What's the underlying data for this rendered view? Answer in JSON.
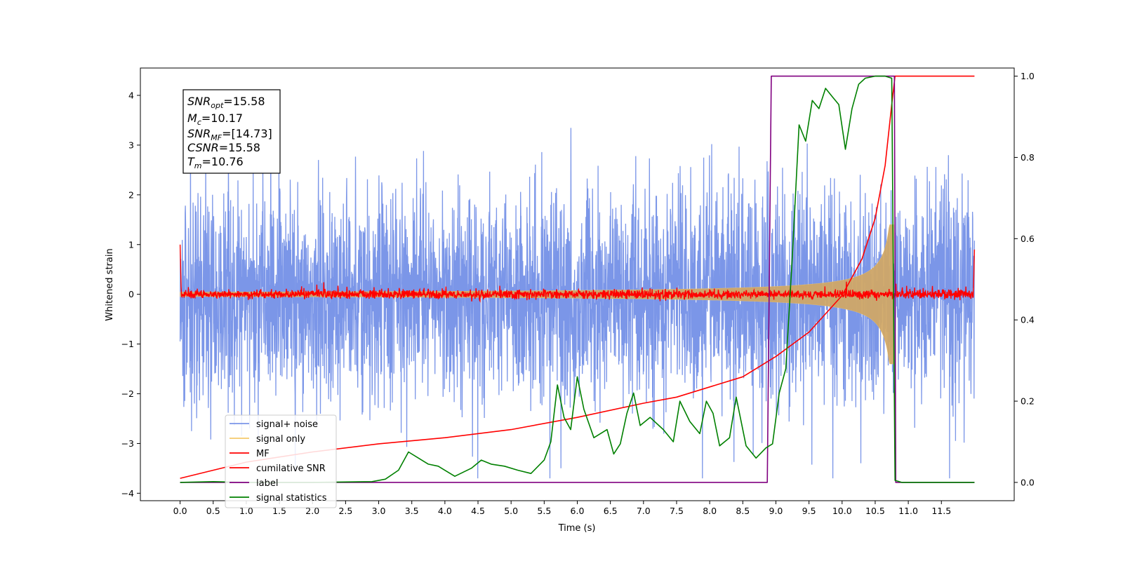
{
  "chart_data": {
    "type": "line",
    "title": "",
    "xlabel": "Time (s)",
    "ylabel": "Whitened strain",
    "xlim": [
      -0.6,
      12.6
    ],
    "ylim": [
      -4.15,
      4.55
    ],
    "y2lim": [
      -0.045,
      1.02
    ],
    "x_ticks": [
      "0.0",
      "0.5",
      "1.0",
      "1.5",
      "2.0",
      "2.5",
      "3.0",
      "3.5",
      "4.0",
      "4.5",
      "5.0",
      "5.5",
      "6.0",
      "6.5",
      "7.0",
      "7.5",
      "8.0",
      "8.5",
      "9.0",
      "9.5",
      "10.0",
      "10.5",
      "11.0",
      "11.5"
    ],
    "y_ticks": [
      "−4",
      "−3",
      "−2",
      "−1",
      "0",
      "1",
      "2",
      "3",
      "4"
    ],
    "y2_ticks": [
      "0.0",
      "0.2",
      "0.4",
      "0.6",
      "0.8",
      "1.0"
    ],
    "grid": false,
    "legend_position": "lower-left",
    "annotation": {
      "snr_opt": {
        "label": "SNR",
        "sub": "opt",
        "value": "=15.58"
      },
      "mc": {
        "label": "M",
        "sub": "c",
        "value": "=10.17"
      },
      "snr_mf": {
        "label": "SNR",
        "sub": "MF",
        "value": "=[14.73]"
      },
      "csnr": {
        "label": "CSNR",
        "sub": "",
        "value": "=15.58"
      },
      "tm": {
        "label": "T",
        "sub": "m",
        "value": "=10.76"
      }
    },
    "series": [
      {
        "name": "signal+ noise",
        "color": "#7b96e8",
        "axis": "left",
        "kind": "noise",
        "t_start": 0.0,
        "t_end": 12.0,
        "approx_envelope": [
          -3.7,
          4.2
        ]
      },
      {
        "name": "signal only",
        "color": "#f5c96b",
        "axis": "left",
        "kind": "chirp",
        "t_start": 0.0,
        "t_end": 10.8,
        "approx_peak_amplitude": 1.4
      },
      {
        "name": "MF",
        "color": "#ff0000",
        "axis": "left",
        "kind": "noise",
        "t_start": 0.0,
        "t_end": 12.0,
        "approx_envelope": [
          -0.12,
          0.22
        ]
      },
      {
        "name": "cumilative SNR",
        "color": "#ff0000",
        "axis": "right",
        "points": [
          [
            0.0,
            0.01
          ],
          [
            1.0,
            0.05
          ],
          [
            2.0,
            0.075
          ],
          [
            3.0,
            0.095
          ],
          [
            4.0,
            0.11
          ],
          [
            5.0,
            0.13
          ],
          [
            6.0,
            0.16
          ],
          [
            7.0,
            0.195
          ],
          [
            7.5,
            0.21
          ],
          [
            8.0,
            0.235
          ],
          [
            8.5,
            0.26
          ],
          [
            9.0,
            0.31
          ],
          [
            9.5,
            0.37
          ],
          [
            10.0,
            0.46
          ],
          [
            10.3,
            0.55
          ],
          [
            10.5,
            0.65
          ],
          [
            10.65,
            0.78
          ],
          [
            10.75,
            0.93
          ],
          [
            10.8,
            1.0
          ],
          [
            12.0,
            1.0
          ]
        ]
      },
      {
        "name": "label",
        "color": "#800080",
        "axis": "right",
        "points": [
          [
            0.0,
            0.0
          ],
          [
            8.87,
            0.0
          ],
          [
            8.93,
            1.0
          ],
          [
            10.79,
            1.0
          ],
          [
            10.81,
            0.0
          ],
          [
            12.0,
            0.0
          ]
        ]
      },
      {
        "name": "signal statistics",
        "color": "#008000",
        "axis": "right",
        "points": [
          [
            0.0,
            0.0
          ],
          [
            0.5,
            0.002
          ],
          [
            1.0,
            0.0
          ],
          [
            2.0,
            0.0
          ],
          [
            2.9,
            0.002
          ],
          [
            3.1,
            0.008
          ],
          [
            3.3,
            0.03
          ],
          [
            3.45,
            0.075
          ],
          [
            3.6,
            0.06
          ],
          [
            3.75,
            0.045
          ],
          [
            3.9,
            0.04
          ],
          [
            4.15,
            0.015
          ],
          [
            4.4,
            0.035
          ],
          [
            4.55,
            0.055
          ],
          [
            4.7,
            0.045
          ],
          [
            4.9,
            0.04
          ],
          [
            5.1,
            0.03
          ],
          [
            5.3,
            0.022
          ],
          [
            5.5,
            0.055
          ],
          [
            5.6,
            0.1
          ],
          [
            5.7,
            0.24
          ],
          [
            5.8,
            0.16
          ],
          [
            5.9,
            0.13
          ],
          [
            6.0,
            0.26
          ],
          [
            6.1,
            0.18
          ],
          [
            6.25,
            0.11
          ],
          [
            6.45,
            0.13
          ],
          [
            6.55,
            0.07
          ],
          [
            6.65,
            0.095
          ],
          [
            6.75,
            0.17
          ],
          [
            6.85,
            0.22
          ],
          [
            6.95,
            0.14
          ],
          [
            7.1,
            0.16
          ],
          [
            7.3,
            0.13
          ],
          [
            7.45,
            0.1
          ],
          [
            7.55,
            0.2
          ],
          [
            7.7,
            0.15
          ],
          [
            7.85,
            0.12
          ],
          [
            7.95,
            0.2
          ],
          [
            8.05,
            0.17
          ],
          [
            8.15,
            0.09
          ],
          [
            8.3,
            0.11
          ],
          [
            8.4,
            0.21
          ],
          [
            8.55,
            0.09
          ],
          [
            8.7,
            0.06
          ],
          [
            8.85,
            0.085
          ],
          [
            8.95,
            0.095
          ],
          [
            9.05,
            0.22
          ],
          [
            9.15,
            0.28
          ],
          [
            9.25,
            0.56
          ],
          [
            9.35,
            0.88
          ],
          [
            9.45,
            0.84
          ],
          [
            9.55,
            0.94
          ],
          [
            9.65,
            0.92
          ],
          [
            9.75,
            0.97
          ],
          [
            9.85,
            0.95
          ],
          [
            9.95,
            0.93
          ],
          [
            10.05,
            0.82
          ],
          [
            10.15,
            0.92
          ],
          [
            10.25,
            0.98
          ],
          [
            10.35,
            0.995
          ],
          [
            10.5,
            1.0
          ],
          [
            10.65,
            1.0
          ],
          [
            10.75,
            0.995
          ],
          [
            10.8,
            0.005
          ],
          [
            10.9,
            0.0
          ],
          [
            12.0,
            0.0
          ]
        ]
      }
    ]
  }
}
